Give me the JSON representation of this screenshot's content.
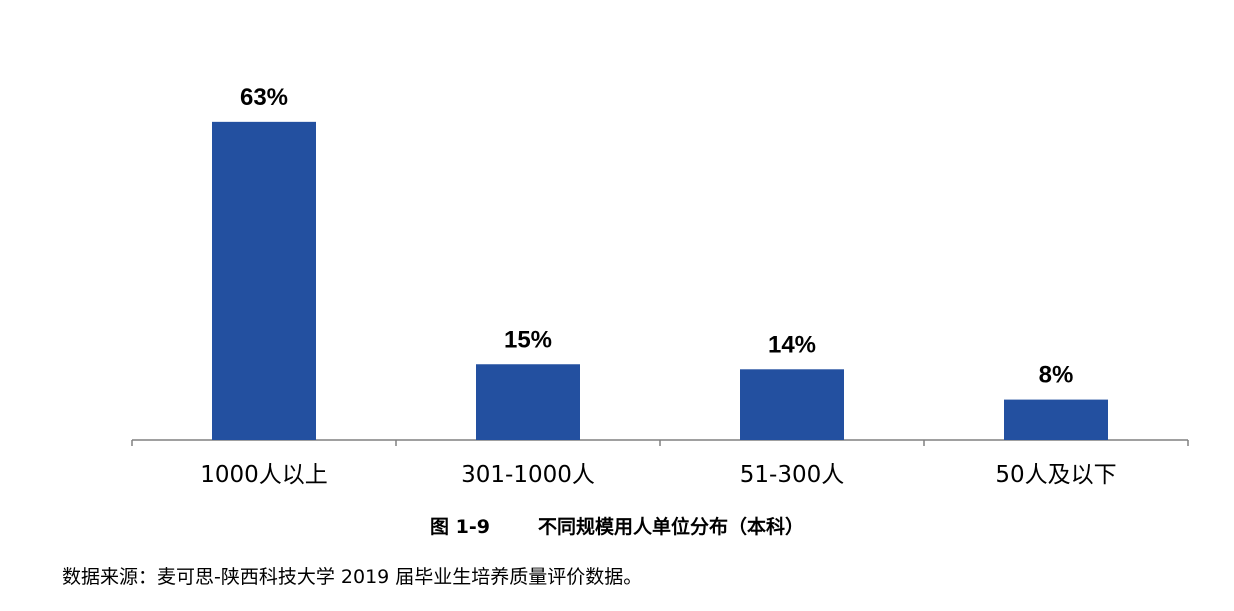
{
  "chart_data": {
    "type": "bar",
    "categories": [
      "1000人以上",
      "301-1000人",
      "51-300人",
      "50人及以下"
    ],
    "values": [
      63,
      15,
      14,
      8
    ],
    "data_labels": [
      "63%",
      "15%",
      "14%",
      "8%"
    ],
    "ylim": [
      0,
      100
    ],
    "grid": false,
    "legend": "none",
    "colors": {
      "bar": "#2350A0",
      "axis": "#808080",
      "label": "#000000"
    }
  },
  "caption": {
    "figure_number": "图 1-9",
    "title": "不同规模用人单位分布（本科）"
  },
  "source_note": "数据来源：麦可思-陕西科技大学 2019 届毕业生培养质量评价数据。"
}
